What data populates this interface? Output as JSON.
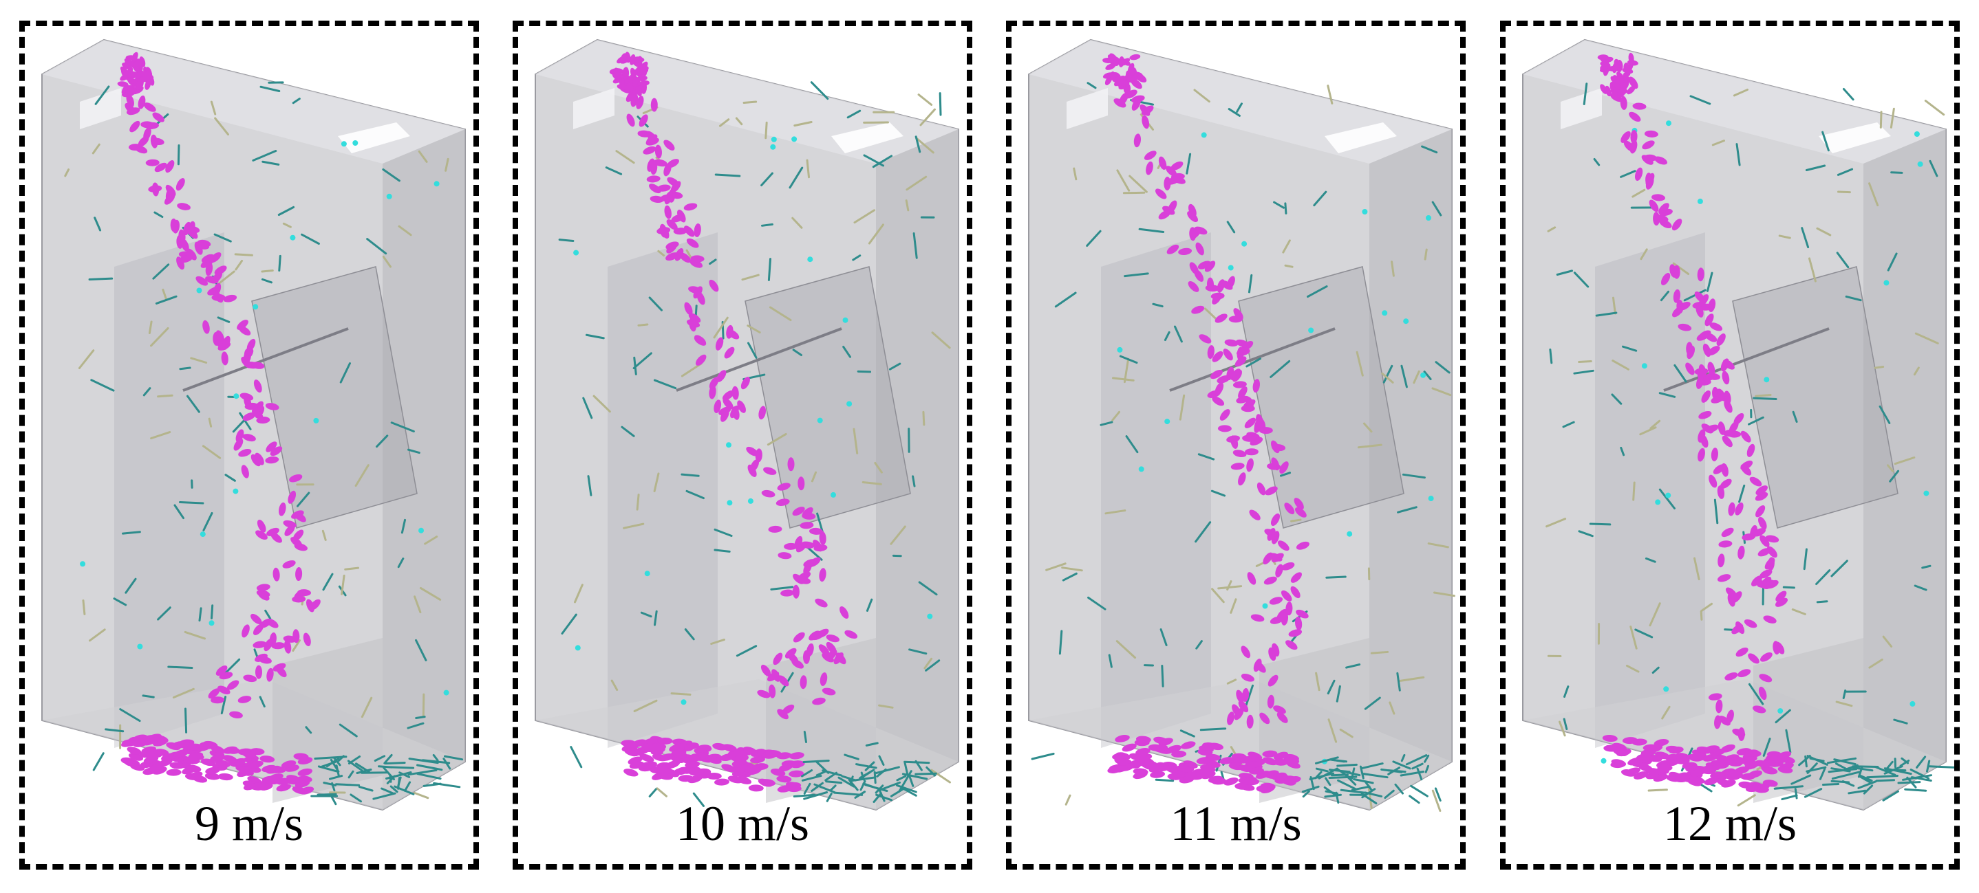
{
  "figure": {
    "panels": [
      {
        "caption": "9 m/s"
      },
      {
        "caption": "10 m/s"
      },
      {
        "caption": "11 m/s"
      },
      {
        "caption": "12 m/s"
      }
    ],
    "colors": {
      "frame": "#000000",
      "housing": "#c8c8cc",
      "grain": "#d93fd9",
      "straw": "#2e8c8c",
      "chaff": "#b4b48c",
      "light_particle": "#33dddd"
    }
  }
}
